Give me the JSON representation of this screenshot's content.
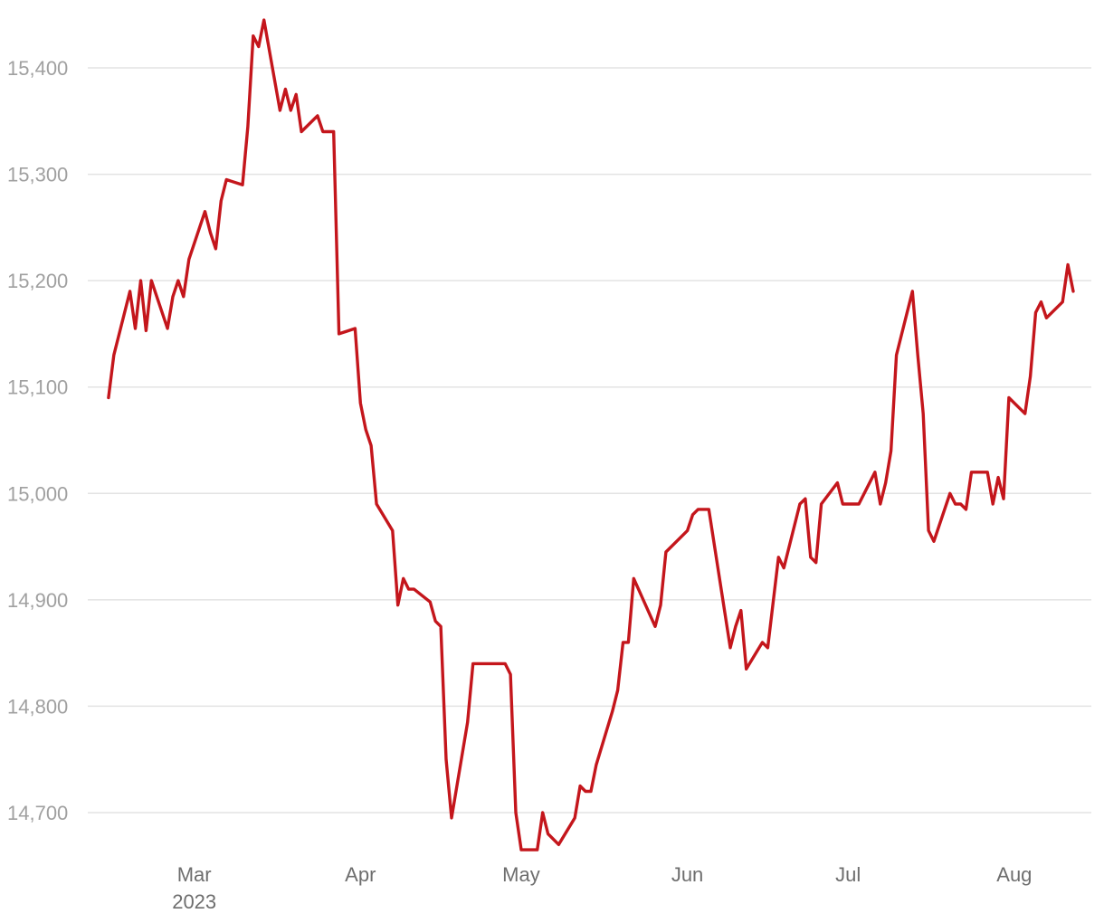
{
  "chart_data": {
    "type": "line",
    "title": "",
    "xlabel": "",
    "ylabel": "",
    "x_range": [
      "2023-02-12",
      "2023-08-12"
    ],
    "ylim": [
      14650,
      15470
    ],
    "y_ticks": [
      {
        "value": 14700,
        "label": "14,700"
      },
      {
        "value": 14800,
        "label": "14,800"
      },
      {
        "value": 14900,
        "label": "14,900"
      },
      {
        "value": 15000,
        "label": "15,000"
      },
      {
        "value": 15100,
        "label": "15,100"
      },
      {
        "value": 15200,
        "label": "15,200"
      },
      {
        "value": 15300,
        "label": "15,300"
      },
      {
        "value": 15400,
        "label": "15,400"
      }
    ],
    "x_ticks": [
      {
        "date": "2023-03-01",
        "label": "Mar",
        "sublabel": "2023"
      },
      {
        "date": "2023-04-01",
        "label": "Apr",
        "sublabel": ""
      },
      {
        "date": "2023-05-01",
        "label": "May",
        "sublabel": ""
      },
      {
        "date": "2023-06-01",
        "label": "Jun",
        "sublabel": ""
      },
      {
        "date": "2023-07-01",
        "label": "Jul",
        "sublabel": ""
      },
      {
        "date": "2023-08-01",
        "label": "Aug",
        "sublabel": ""
      }
    ],
    "grid": true,
    "legend": "none",
    "series": [
      {
        "color": "#c4161c",
        "points": [
          [
            "2023-02-13",
            15090
          ],
          [
            "2023-02-14",
            15130
          ],
          [
            "2023-02-17",
            15190
          ],
          [
            "2023-02-18",
            15155
          ],
          [
            "2023-02-19",
            15200
          ],
          [
            "2023-02-20",
            15153
          ],
          [
            "2023-02-21",
            15200
          ],
          [
            "2023-02-24",
            15155
          ],
          [
            "2023-02-25",
            15185
          ],
          [
            "2023-02-26",
            15200
          ],
          [
            "2023-02-27",
            15185
          ],
          [
            "2023-02-28",
            15220
          ],
          [
            "2023-03-03",
            15265
          ],
          [
            "2023-03-04",
            15245
          ],
          [
            "2023-03-05",
            15230
          ],
          [
            "2023-03-06",
            15275
          ],
          [
            "2023-03-07",
            15295
          ],
          [
            "2023-03-10",
            15290
          ],
          [
            "2023-03-11",
            15345
          ],
          [
            "2023-03-12",
            15430
          ],
          [
            "2023-03-13",
            15420
          ],
          [
            "2023-03-14",
            15445
          ],
          [
            "2023-03-17",
            15360
          ],
          [
            "2023-03-18",
            15380
          ],
          [
            "2023-03-19",
            15360
          ],
          [
            "2023-03-20",
            15375
          ],
          [
            "2023-03-21",
            15340
          ],
          [
            "2023-03-24",
            15355
          ],
          [
            "2023-03-25",
            15340
          ],
          [
            "2023-03-27",
            15340
          ],
          [
            "2023-03-28",
            15150
          ],
          [
            "2023-03-31",
            15155
          ],
          [
            "2023-04-01",
            15085
          ],
          [
            "2023-04-02",
            15060
          ],
          [
            "2023-04-03",
            15045
          ],
          [
            "2023-04-04",
            14990
          ],
          [
            "2023-04-07",
            14965
          ],
          [
            "2023-04-08",
            14895
          ],
          [
            "2023-04-09",
            14920
          ],
          [
            "2023-04-10",
            14910
          ],
          [
            "2023-04-11",
            14910
          ],
          [
            "2023-04-14",
            14898
          ],
          [
            "2023-04-15",
            14880
          ],
          [
            "2023-04-16",
            14875
          ],
          [
            "2023-04-17",
            14750
          ],
          [
            "2023-04-18",
            14695
          ],
          [
            "2023-04-21",
            14785
          ],
          [
            "2023-04-22",
            14840
          ],
          [
            "2023-04-28",
            14840
          ],
          [
            "2023-04-29",
            14830
          ],
          [
            "2023-04-30",
            14700
          ],
          [
            "2023-05-01",
            14665
          ],
          [
            "2023-05-04",
            14665
          ],
          [
            "2023-05-05",
            14700
          ],
          [
            "2023-05-06",
            14680
          ],
          [
            "2023-05-08",
            14670
          ],
          [
            "2023-05-11",
            14695
          ],
          [
            "2023-05-12",
            14725
          ],
          [
            "2023-05-13",
            14720
          ],
          [
            "2023-05-14",
            14720
          ],
          [
            "2023-05-15",
            14745
          ],
          [
            "2023-05-18",
            14795
          ],
          [
            "2023-05-19",
            14815
          ],
          [
            "2023-05-20",
            14860
          ],
          [
            "2023-05-21",
            14860
          ],
          [
            "2023-05-22",
            14920
          ],
          [
            "2023-05-26",
            14875
          ],
          [
            "2023-05-27",
            14895
          ],
          [
            "2023-05-28",
            14945
          ],
          [
            "2023-06-01",
            14965
          ],
          [
            "2023-06-02",
            14980
          ],
          [
            "2023-06-03",
            14985
          ],
          [
            "2023-06-05",
            14985
          ],
          [
            "2023-06-09",
            14855
          ],
          [
            "2023-06-10",
            14875
          ],
          [
            "2023-06-11",
            14890
          ],
          [
            "2023-06-12",
            14835
          ],
          [
            "2023-06-15",
            14860
          ],
          [
            "2023-06-16",
            14855
          ],
          [
            "2023-06-18",
            14940
          ],
          [
            "2023-06-19",
            14930
          ],
          [
            "2023-06-22",
            14990
          ],
          [
            "2023-06-23",
            14995
          ],
          [
            "2023-06-24",
            14940
          ],
          [
            "2023-06-25",
            14935
          ],
          [
            "2023-06-26",
            14990
          ],
          [
            "2023-06-29",
            15010
          ],
          [
            "2023-06-30",
            14990
          ],
          [
            "2023-07-03",
            14990
          ],
          [
            "2023-07-06",
            15020
          ],
          [
            "2023-07-07",
            14990
          ],
          [
            "2023-07-08",
            15010
          ],
          [
            "2023-07-09",
            15040
          ],
          [
            "2023-07-10",
            15130
          ],
          [
            "2023-07-13",
            15190
          ],
          [
            "2023-07-14",
            15130
          ],
          [
            "2023-07-15",
            15075
          ],
          [
            "2023-07-16",
            14965
          ],
          [
            "2023-07-17",
            14955
          ],
          [
            "2023-07-20",
            15000
          ],
          [
            "2023-07-21",
            14990
          ],
          [
            "2023-07-22",
            14990
          ],
          [
            "2023-07-23",
            14985
          ],
          [
            "2023-07-24",
            15020
          ],
          [
            "2023-07-27",
            15020
          ],
          [
            "2023-07-28",
            14990
          ],
          [
            "2023-07-29",
            15015
          ],
          [
            "2023-07-30",
            14995
          ],
          [
            "2023-07-31",
            15090
          ],
          [
            "2023-08-03",
            15075
          ],
          [
            "2023-08-04",
            15110
          ],
          [
            "2023-08-05",
            15170
          ],
          [
            "2023-08-06",
            15180
          ],
          [
            "2023-08-07",
            15165
          ],
          [
            "2023-08-10",
            15180
          ],
          [
            "2023-08-11",
            15215
          ],
          [
            "2023-08-12",
            15190
          ]
        ]
      }
    ]
  }
}
